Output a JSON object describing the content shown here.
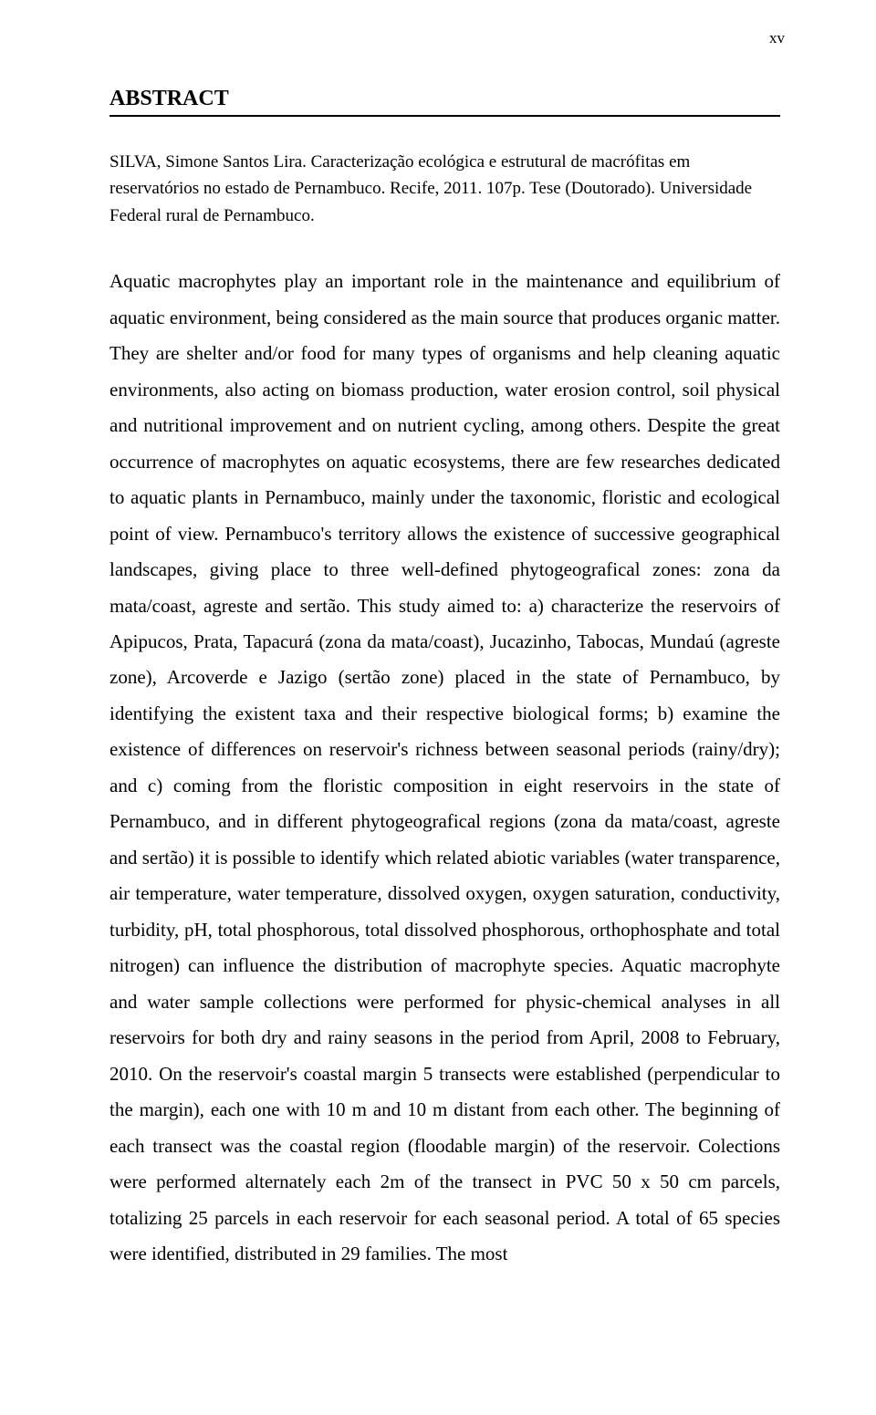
{
  "page": {
    "number": "xv",
    "heading": "ABSTRACT",
    "citation": {
      "line1": "SILVA, Simone Santos Lira. Caracterização ecológica e estrutural de macrófitas em",
      "line2": "reservatórios no estado de Pernambuco. Recife, 2011. 107p. Tese (Doutorado). Universidade",
      "line3": "Federal rural de Pernambuco."
    },
    "body": "Aquatic macrophytes play an important role in the maintenance and equilibrium of aquatic environment, being considered as the main source that produces organic matter. They are shelter and/or food for many types of organisms and help cleaning aquatic environments, also acting on biomass production, water erosion control, soil physical and nutritional improvement and on nutrient cycling, among others. Despite the great occurrence of macrophytes on aquatic ecosystems, there are few researches dedicated to aquatic plants in Pernambuco, mainly under the taxonomic, floristic and ecological point of view. Pernambuco's territory allows the existence of successive geographical landscapes, giving place to three well-defined phytogeografical zones: zona da mata/coast, agreste and sertão. This study aimed to: a) characterize the reservoirs of Apipucos, Prata, Tapacurá (zona da mata/coast), Jucazinho, Tabocas, Mundaú (agreste zone), Arcoverde e Jazigo (sertão zone) placed in the state of Pernambuco, by identifying the existent taxa and their respective biological forms; b) examine the existence of differences on reservoir's richness between seasonal periods (rainy/dry); and c) coming from the floristic composition in eight reservoirs in the state of Pernambuco, and in different phytogeografical regions (zona da mata/coast, agreste and sertão) it is possible to identify which related abiotic variables (water transparence, air temperature, water temperature, dissolved oxygen, oxygen saturation, conductivity, turbidity, pH, total phosphorous, total dissolved phosphorous, orthophosphate and total nitrogen) can influence the distribution of macrophyte species. Aquatic macrophyte and water sample collections were performed for physic-chemical analyses in all reservoirs for both dry and rainy seasons in the period from April, 2008 to February, 2010. On the reservoir's coastal margin 5 transects were established (perpendicular to the margin), each one with 10 m and 10 m distant from each other. The beginning of each transect was the coastal region (floodable margin) of the reservoir. Colections were performed alternately each 2m of the transect in PVC 50 x 50 cm parcels, totalizing 25 parcels in each reservoir for each seasonal period. A total of 65 species were identified, distributed in 29 families. The most"
  }
}
